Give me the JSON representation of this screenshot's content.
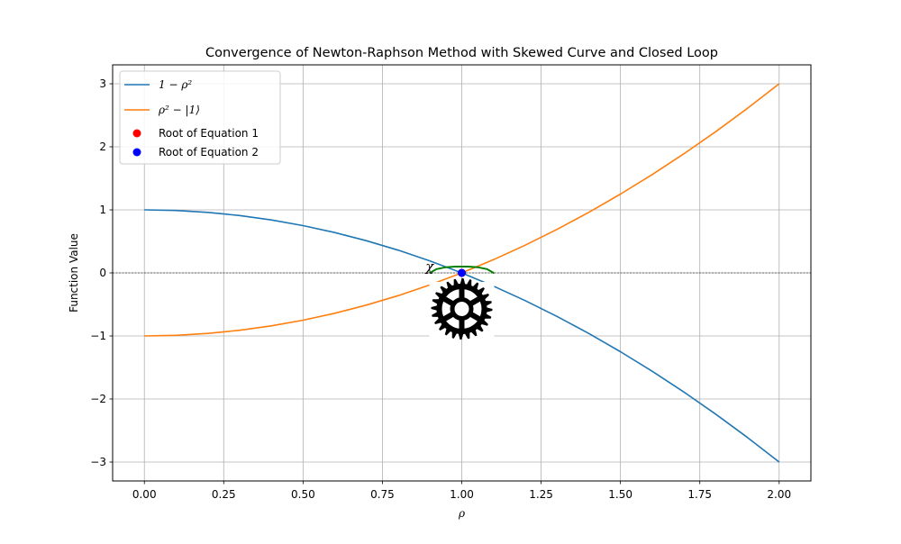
{
  "chart_data": {
    "type": "line",
    "title": "Convergence of Newton-Raphson Method with Skewed Curve and Closed Loop",
    "xlabel": "ρ",
    "ylabel": "Function Value",
    "xlim": [
      -0.1,
      2.1
    ],
    "ylim": [
      -3.3,
      3.3
    ],
    "xticks": [
      0.0,
      0.25,
      0.5,
      0.75,
      1.0,
      1.25,
      1.5,
      1.75,
      2.0
    ],
    "xtick_labels": [
      "0.00",
      "0.25",
      "0.50",
      "0.75",
      "1.00",
      "1.25",
      "1.50",
      "1.75",
      "2.00"
    ],
    "yticks": [
      -3,
      -2,
      -1,
      0,
      1,
      2,
      3
    ],
    "ytick_labels": [
      "−3",
      "−2",
      "−1",
      "0",
      "1",
      "2",
      "3"
    ],
    "grid": true,
    "legend_position": "upper-left",
    "hline_y": 0,
    "series": [
      {
        "name": "1 − ρ²",
        "color": "#1f77b4",
        "x": [
          0.0,
          0.1,
          0.2,
          0.3,
          0.4,
          0.5,
          0.6,
          0.7,
          0.8,
          0.9,
          1.0,
          1.1,
          1.2,
          1.3,
          1.4,
          1.5,
          1.6,
          1.7,
          1.8,
          1.9,
          2.0
        ],
        "y": [
          1.0,
          0.99,
          0.96,
          0.91,
          0.84,
          0.75,
          0.64,
          0.51,
          0.36,
          0.19,
          0.0,
          -0.21,
          -0.44,
          -0.69,
          -0.96,
          -1.25,
          -1.56,
          -1.89,
          -2.24,
          -2.61,
          -3.0
        ]
      },
      {
        "name": "ρ² − |1⟩",
        "color": "#ff7f0e",
        "x": [
          0.0,
          0.1,
          0.2,
          0.3,
          0.4,
          0.5,
          0.6,
          0.7,
          0.8,
          0.9,
          1.0,
          1.1,
          1.2,
          1.3,
          1.4,
          1.5,
          1.6,
          1.7,
          1.8,
          1.9,
          2.0
        ],
        "y": [
          -1.0,
          -0.99,
          -0.96,
          -0.91,
          -0.84,
          -0.75,
          -0.64,
          -0.51,
          -0.36,
          -0.19,
          0.0,
          0.21,
          0.44,
          0.69,
          0.96,
          1.25,
          1.56,
          1.89,
          2.24,
          2.61,
          3.0
        ]
      }
    ],
    "points": [
      {
        "name": "Root of Equation 1",
        "color": "#ff0000",
        "x": 1.0,
        "y": 0.0
      },
      {
        "name": "Root of Equation 2",
        "color": "#0000ff",
        "x": 1.0,
        "y": 0.0
      }
    ],
    "loop": {
      "color": "#008000",
      "x": [
        0.9,
        0.92,
        0.95,
        0.98,
        1.0,
        1.02,
        1.05,
        1.08,
        1.1,
        1.08,
        1.05,
        1.02,
        1.0,
        0.98,
        0.95,
        0.92,
        0.9
      ],
      "y": [
        0.0,
        0.06,
        0.09,
        0.1,
        0.1,
        0.1,
        0.09,
        0.06,
        0.0,
        0.06,
        0.09,
        0.1,
        0.1,
        0.1,
        0.09,
        0.06,
        0.0
      ]
    },
    "marker_glyph": "χ",
    "gear_icon": "gear-icon"
  }
}
